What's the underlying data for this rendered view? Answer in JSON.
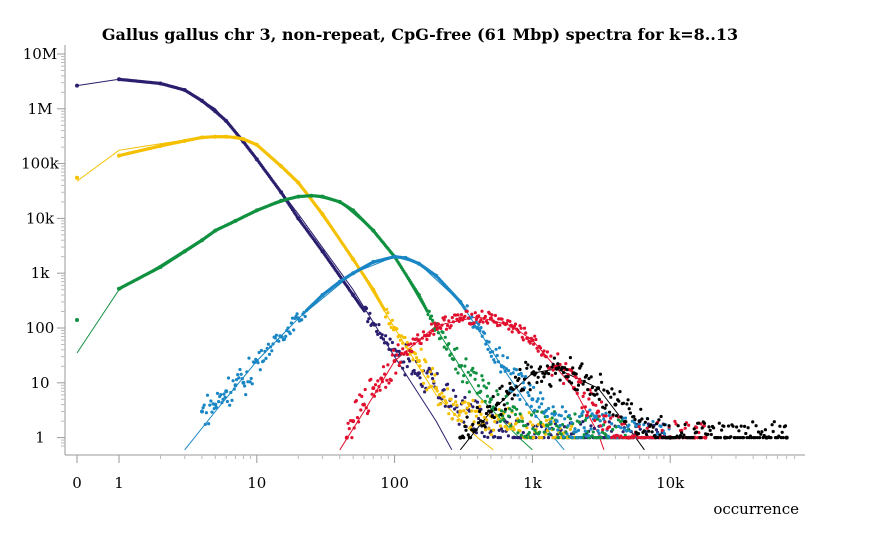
{
  "chart_data": {
    "type": "scatter",
    "title": "Gallus gallus chr 3, non-repeat, CpG-free (61 Mbp) spectra for k=8..13",
    "xlabel": "occurrence",
    "ylabel": "",
    "x_scale": "log (0 and 1 shown at left)",
    "y_scale": "log",
    "x_ticks": [
      "0",
      "1",
      "10",
      "100",
      "1k",
      "10k"
    ],
    "y_ticks": [
      "10M",
      "1M",
      "100k",
      "10k",
      "1k",
      "100",
      "10",
      "1"
    ],
    "xlim": [
      0,
      80000
    ],
    "ylim": [
      0.6,
      10000000
    ],
    "grid": false,
    "legend": "none",
    "colors": [
      "#2a1f6e",
      "#f5c000",
      "#109140",
      "#1a86c4",
      "#e0102e",
      "#000000"
    ],
    "series": [
      {
        "color": "#2a1f6e",
        "points": [
          [
            0,
            2650000
          ],
          [
            1,
            3450000
          ],
          [
            2,
            2900000
          ],
          [
            3,
            2200000
          ],
          [
            4,
            1400000
          ],
          [
            5,
            900000
          ],
          [
            6,
            600000
          ],
          [
            8,
            250000
          ],
          [
            10,
            120000
          ],
          [
            15,
            30000
          ],
          [
            20,
            10000
          ],
          [
            30,
            2500
          ],
          [
            50,
            400
          ],
          [
            70,
            120
          ],
          [
            100,
            40
          ],
          [
            150,
            15
          ],
          [
            200,
            8
          ],
          [
            300,
            3
          ],
          [
            1000,
            1
          ],
          [
            10000,
            1
          ]
        ],
        "fit": [
          [
            0,
            2650000
          ],
          [
            1,
            3450000
          ],
          [
            2,
            2950000
          ],
          [
            3,
            2250000
          ],
          [
            5,
            1000000
          ],
          [
            10,
            120000
          ],
          [
            20,
            12000
          ],
          [
            50,
            500
          ],
          [
            100,
            30
          ],
          [
            200,
            2
          ],
          [
            260,
            0.6
          ]
        ]
      },
      {
        "color": "#f5c000",
        "points": [
          [
            0,
            55000
          ],
          [
            1,
            140000
          ],
          [
            2,
            210000
          ],
          [
            3,
            260000
          ],
          [
            4,
            300000
          ],
          [
            5,
            310000
          ],
          [
            6,
            310000
          ],
          [
            7,
            300000
          ],
          [
            8,
            280000
          ],
          [
            10,
            220000
          ],
          [
            15,
            90000
          ],
          [
            20,
            45000
          ],
          [
            30,
            12000
          ],
          [
            50,
            1800
          ],
          [
            70,
            500
          ],
          [
            100,
            100
          ],
          [
            150,
            25
          ],
          [
            200,
            8
          ],
          [
            300,
            3
          ],
          [
            2000,
            1
          ]
        ],
        "fit": [
          [
            0,
            48000
          ],
          [
            1,
            175000
          ],
          [
            2,
            230000
          ],
          [
            3,
            270000
          ],
          [
            5,
            310000
          ],
          [
            7,
            300000
          ],
          [
            10,
            220000
          ],
          [
            20,
            45000
          ],
          [
            50,
            1800
          ],
          [
            100,
            100
          ],
          [
            200,
            6
          ],
          [
            400,
            1
          ],
          [
            520,
            0.6
          ]
        ]
      },
      {
        "color": "#109140",
        "points": [
          [
            0,
            140
          ],
          [
            1,
            520
          ],
          [
            2,
            1300
          ],
          [
            3,
            2500
          ],
          [
            4,
            4000
          ],
          [
            5,
            6000
          ],
          [
            7,
            9000
          ],
          [
            10,
            14000
          ],
          [
            15,
            21000
          ],
          [
            20,
            25000
          ],
          [
            25,
            26000
          ],
          [
            30,
            25000
          ],
          [
            40,
            20000
          ],
          [
            50,
            14000
          ],
          [
            70,
            6000
          ],
          [
            100,
            2000
          ],
          [
            150,
            400
          ],
          [
            200,
            100
          ],
          [
            300,
            20
          ],
          [
            500,
            5
          ],
          [
            800,
            2
          ],
          [
            5000,
            1
          ]
        ],
        "fit": [
          [
            0,
            35
          ],
          [
            1,
            500
          ],
          [
            2,
            1400
          ],
          [
            5,
            6000
          ],
          [
            10,
            14000
          ],
          [
            20,
            25000
          ],
          [
            25,
            26000
          ],
          [
            40,
            20000
          ],
          [
            70,
            6000
          ],
          [
            100,
            2000
          ],
          [
            200,
            100
          ],
          [
            400,
            6
          ],
          [
            800,
            1
          ],
          [
            1000,
            0.6
          ]
        ]
      },
      {
        "color": "#1a86c4",
        "points": [
          [
            4,
            3
          ],
          [
            5,
            4
          ],
          [
            6,
            7
          ],
          [
            7,
            9
          ],
          [
            8,
            10
          ],
          [
            10,
            25
          ],
          [
            15,
            70
          ],
          [
            20,
            150
          ],
          [
            30,
            400
          ],
          [
            40,
            700
          ],
          [
            50,
            1000
          ],
          [
            70,
            1600
          ],
          [
            100,
            2000
          ],
          [
            120,
            1900
          ],
          [
            150,
            1500
          ],
          [
            200,
            900
          ],
          [
            300,
            300
          ],
          [
            400,
            100
          ],
          [
            600,
            20
          ],
          [
            1000,
            5
          ],
          [
            1500,
            2
          ],
          [
            10000,
            1
          ]
        ],
        "fit": [
          [
            3,
            0.6
          ],
          [
            5,
            3
          ],
          [
            10,
            25
          ],
          [
            20,
            150
          ],
          [
            50,
            1000
          ],
          [
            100,
            2000
          ],
          [
            150,
            1500
          ],
          [
            300,
            300
          ],
          [
            600,
            20
          ],
          [
            1000,
            3
          ],
          [
            1700,
            0.6
          ]
        ]
      },
      {
        "color": "#e0102e",
        "points": [
          [
            45,
            1
          ],
          [
            50,
            2
          ],
          [
            60,
            4
          ],
          [
            70,
            8
          ],
          [
            80,
            12
          ],
          [
            100,
            25
          ],
          [
            150,
            60
          ],
          [
            200,
            110
          ],
          [
            300,
            150
          ],
          [
            400,
            160
          ],
          [
            500,
            150
          ],
          [
            700,
            110
          ],
          [
            1000,
            60
          ],
          [
            1500,
            20
          ],
          [
            2000,
            8
          ],
          [
            3000,
            3
          ],
          [
            5000,
            1
          ],
          [
            15000,
            1
          ],
          [
            18000,
            1
          ]
        ],
        "fit": [
          [
            40,
            0.6
          ],
          [
            60,
            3
          ],
          [
            100,
            25
          ],
          [
            200,
            110
          ],
          [
            400,
            160
          ],
          [
            700,
            110
          ],
          [
            1000,
            60
          ],
          [
            2000,
            8
          ],
          [
            3000,
            1.2
          ],
          [
            3300,
            0.6
          ]
        ]
      },
      {
        "color": "#000000",
        "points": [
          [
            300,
            1
          ],
          [
            500,
            3
          ],
          [
            700,
            8
          ],
          [
            1000,
            15
          ],
          [
            1500,
            18
          ],
          [
            2000,
            15
          ],
          [
            3000,
            8
          ],
          [
            4000,
            4
          ],
          [
            6000,
            2
          ],
          [
            10000,
            1
          ],
          [
            25000,
            1
          ],
          [
            50000,
            1
          ],
          [
            70000,
            1
          ]
        ],
        "fit": [
          [
            300,
            0.6
          ],
          [
            500,
            3
          ],
          [
            1000,
            15
          ],
          [
            1500,
            18
          ],
          [
            3000,
            8
          ],
          [
            5000,
            1.5
          ],
          [
            6500,
            0.6
          ]
        ]
      }
    ]
  }
}
